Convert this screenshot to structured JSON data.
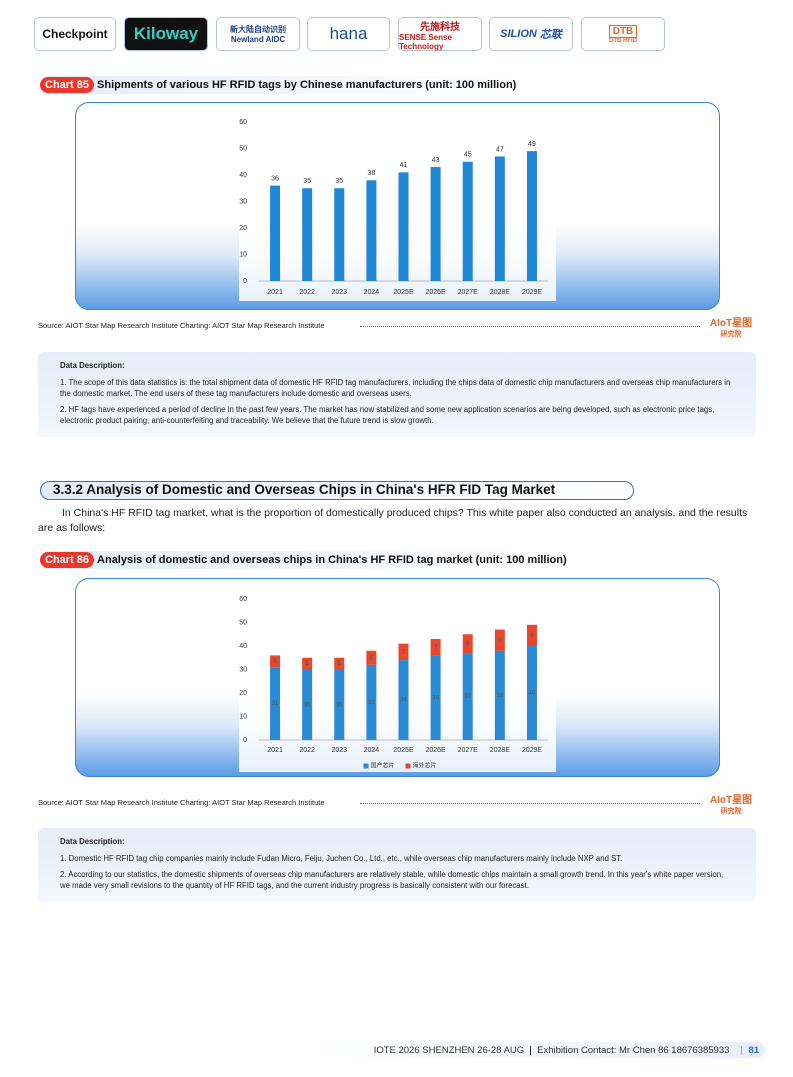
{
  "logos": [
    "Checkpoint",
    "Kiloway",
    "新大陆自动识别",
    "Newland AIDC",
    "hana",
    "先施科技",
    "SENSE",
    "Sense Technology",
    "SILION",
    "芯联",
    "DTB",
    "DTB RFID"
  ],
  "sections": [
    {
      "badge": "Chart 85",
      "caption": "Shipments of various HF RFID tags by Chinese manufacturers (unit: 100 million)",
      "source": "Source: AIOT Star Map Research Institute  Charting: AIOT Star Map Research Institute",
      "description_title": "Data Description:",
      "description": [
        "1. The scope of this data statistics is: the total shipment data of domestic HF RFID tag manufacturers, including the chips data of domestic chip manufacturers and overseas chip manufacturers in the domestic market. The end users of these tag manufacturers include domestic and overseas users.",
        "2. HF tags have experienced a period of decline in the past few years. The market has now stabilized and some new application scenarios are being developed, such as electronic price tags, electronic product pairing, anti-counterfeiting and traceability. We believe that the future trend is slow growth."
      ]
    },
    {
      "badge": "Chart 86",
      "caption": "Analysis of domestic and overseas chips in China's HF RFID tag market (unit: 100 million)",
      "source": "Source: AIOT Star Map Research Institute  Charting: AIOT Star Map Research Institute",
      "description_title": "Data Description:",
      "description": [
        "1. Domestic HF RFID tag chip companies mainly include Fudan Micro, Feiju, Juchen Co., Ltd., etc., while overseas chip manufacturers mainly include NXP and ST.",
        "2. According to our statistics, the domestic shipments of overseas chip manufacturers are relatively stable, while domestic chips maintain a small growth trend. In this year's white paper version, we made very small revisions to the quantity of HF RFID tags, and the current industry progress is basically consistent with our forecast."
      ]
    }
  ],
  "aiot_logo": {
    "name": "AIoT星图",
    "sub": "研究院"
  },
  "heading": "3.3.2 Analysis of Domestic and Overseas Chips in China's HFR FID Tag Market",
  "intro": "In China's HF RFID tag market, what is the proportion of domestically produced chips? This white paper also conducted an analysis, and the results are as follows:",
  "footer": {
    "event": "IOTE 2026 SHENZHEN 26-28 AUG",
    "contact": "Exhibition Contact: Mr Chen 86 18676385933",
    "page": "81"
  },
  "chart_data": [
    {
      "type": "bar",
      "categories": [
        "2021",
        "2022",
        "2023",
        "2024",
        "2025E",
        "2026E",
        "2027E",
        "2028E",
        "2029E"
      ],
      "values": [
        36,
        35,
        35,
        38,
        41,
        43,
        45,
        47,
        49
      ],
      "color": "#1f87d6",
      "ylim": [
        0,
        60
      ],
      "yticks": [
        0,
        10,
        20,
        30,
        40,
        50,
        60
      ],
      "data_labels": true
    },
    {
      "type": "stacked_bar",
      "categories": [
        "2021",
        "2022",
        "2023",
        "2024",
        "2025E",
        "2026E",
        "2027E",
        "2028E",
        "2029E"
      ],
      "series": [
        {
          "name": "国产芯片",
          "color": "#2a8ad6",
          "values": [
            31,
            30,
            30,
            32,
            34,
            36,
            37,
            38,
            40
          ]
        },
        {
          "name": "海外芯片",
          "color": "#e9472b",
          "values": [
            5,
            5,
            5,
            6,
            7,
            7,
            8,
            9,
            9
          ]
        }
      ],
      "ylim": [
        0,
        60
      ],
      "yticks": [
        0,
        10,
        20,
        30,
        40,
        50,
        60
      ],
      "data_labels": true,
      "legend": "bottom"
    }
  ]
}
